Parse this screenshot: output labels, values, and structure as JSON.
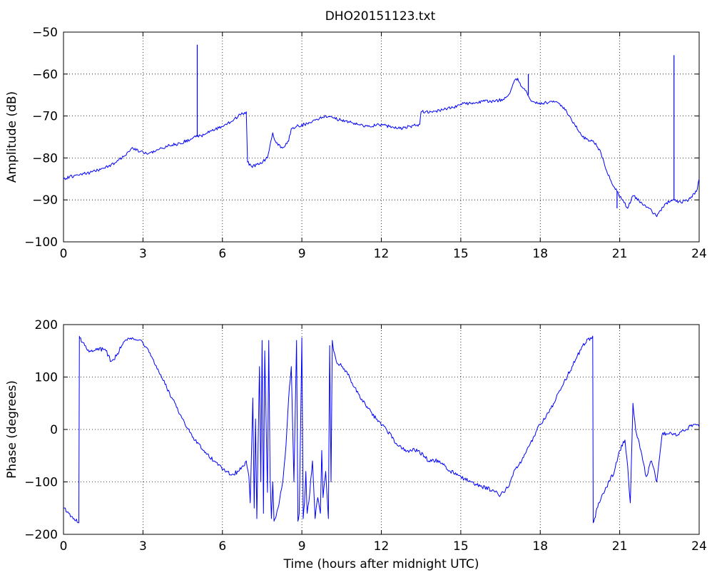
{
  "figure": {
    "title": "DHO20151123.txt"
  },
  "chart_data": [
    {
      "type": "line",
      "title": "DHO20151123.txt",
      "xlabel": "",
      "ylabel": "Amplitude (dB)",
      "xlim": [
        0,
        24
      ],
      "ylim": [
        -100,
        -50
      ],
      "xticks": [
        0,
        3,
        6,
        9,
        12,
        15,
        18,
        21,
        24
      ],
      "xtick_labels": [
        "0",
        "3",
        "6",
        "9",
        "12",
        "15",
        "18",
        "21",
        "24"
      ],
      "yticks": [
        -100,
        -90,
        -80,
        -70,
        -60,
        -50
      ],
      "ytick_labels": [
        "−100",
        "−90",
        "−80",
        "−70",
        "−60",
        "−50"
      ],
      "grid": true,
      "color": "#0000ff",
      "series": [
        {
          "x": [
            0,
            0.5,
            1.0,
            1.5,
            2.0,
            2.3,
            2.6,
            2.9,
            3.2,
            3.6,
            4.0,
            4.4,
            4.8,
            5.0,
            5.3,
            5.6,
            6.0,
            6.3,
            6.6,
            6.9,
            6.95,
            7.1,
            7.4,
            7.7,
            7.9,
            8.0,
            8.1,
            8.3,
            8.5,
            8.6,
            8.8,
            9.1,
            9.5,
            9.9,
            10.2,
            10.5,
            10.8,
            11.1,
            11.5,
            11.9,
            12.3,
            12.7,
            13.1,
            13.45,
            13.5,
            13.9,
            14.3,
            14.7,
            15.1,
            15.5,
            15.9,
            16.3,
            16.6,
            16.8,
            17.0,
            17.15,
            17.3,
            17.5,
            17.7,
            17.9,
            18.1,
            18.4,
            18.7,
            19.0,
            19.3,
            19.6,
            19.9,
            20.1,
            20.3,
            20.5,
            20.7,
            20.9,
            21.1,
            21.3,
            21.5,
            21.8,
            22.1,
            22.4,
            22.7,
            23.0,
            23.3,
            23.6,
            23.9,
            24.0
          ],
          "y": [
            -85,
            -84,
            -83.5,
            -82.5,
            -81,
            -79.5,
            -77.5,
            -78.5,
            -79,
            -78,
            -77,
            -76.5,
            -75.5,
            -75,
            -74.5,
            -73.5,
            -72.5,
            -71.5,
            -70,
            -69,
            -81,
            -82,
            -81.5,
            -80,
            -74,
            -76,
            -77,
            -77.5,
            -76,
            -73,
            -72.5,
            -72,
            -71,
            -70,
            -70.5,
            -71,
            -71.5,
            -72,
            -72.5,
            -72,
            -72.5,
            -73,
            -72.5,
            -72,
            -69,
            -69,
            -68.5,
            -68,
            -67,
            -67,
            -66.5,
            -66.5,
            -66,
            -65,
            -62,
            -61,
            -63,
            -64.5,
            -66.5,
            -67,
            -67,
            -66.5,
            -67,
            -69,
            -72,
            -75,
            -76,
            -76.5,
            -79,
            -83,
            -86,
            -88,
            -90,
            -92,
            -89,
            -90.5,
            -92,
            -94,
            -91,
            -90,
            -90.5,
            -90,
            -88,
            -85
          ]
        }
      ],
      "spikes": [
        {
          "x": 5.05,
          "y": -53
        },
        {
          "x": 17.55,
          "y": -60
        },
        {
          "x": 23.05,
          "y": -55.5
        },
        {
          "x": 20.9,
          "y": -92
        }
      ]
    },
    {
      "type": "line",
      "title": "",
      "xlabel": "Time (hours after midnight UTC)",
      "ylabel": "Phase (degrees)",
      "xlim": [
        0,
        24
      ],
      "ylim": [
        -200,
        200
      ],
      "xticks": [
        0,
        3,
        6,
        9,
        12,
        15,
        18,
        21,
        24
      ],
      "xtick_labels": [
        "0",
        "3",
        "6",
        "9",
        "12",
        "15",
        "18",
        "21",
        "24"
      ],
      "yticks": [
        -200,
        -100,
        0,
        100,
        200
      ],
      "ytick_labels": [
        "−200",
        "−100",
        "0",
        "100",
        "200"
      ],
      "grid": true,
      "color": "#0000ff",
      "series": [
        {
          "x": [
            0,
            0.2,
            0.4,
            0.58,
            0.6,
            0.62,
            0.8,
            1.0,
            1.3,
            1.6,
            1.8,
            2.0,
            2.2,
            2.4,
            2.6,
            2.8,
            3.0,
            3.3,
            3.7,
            4.1,
            4.5,
            4.9,
            5.3,
            5.7,
            6.1,
            6.4,
            6.6,
            6.8,
            6.9,
            7.0,
            7.05,
            7.1,
            7.15,
            7.2,
            7.25,
            7.3,
            7.4,
            7.45,
            7.5,
            7.55,
            7.6,
            7.7,
            7.75,
            7.8,
            7.85,
            7.9,
            7.95,
            8.0,
            8.1,
            8.2,
            8.3,
            8.4,
            8.5,
            8.6,
            8.7,
            8.8,
            8.85,
            8.9,
            8.95,
            9.0,
            9.05,
            9.1,
            9.15,
            9.2,
            9.3,
            9.4,
            9.5,
            9.6,
            9.7,
            9.75,
            9.8,
            9.9,
            10.0,
            10.05,
            10.1,
            10.15,
            10.2,
            10.3,
            10.5,
            10.8,
            11.0,
            11.2,
            11.5,
            11.8,
            12.2,
            12.6,
            13.0,
            13.4,
            13.8,
            14.2,
            14.6,
            15.0,
            15.4,
            15.8,
            16.2,
            16.5,
            16.8,
            17.0,
            17.3,
            17.6,
            18.0,
            18.4,
            18.8,
            19.2,
            19.6,
            19.9,
            19.98,
            20.0,
            20.05,
            20.2,
            20.5,
            20.8,
            21.0,
            21.2,
            21.3,
            21.4,
            21.5,
            21.6,
            21.8,
            22.0,
            22.2,
            22.4,
            22.6,
            22.9,
            23.2,
            23.5,
            23.8,
            24.0
          ],
          "y": [
            -150,
            -160,
            -170,
            -178,
            178,
            175,
            160,
            150,
            155,
            150,
            130,
            140,
            160,
            170,
            175,
            170,
            165,
            140,
            100,
            60,
            20,
            -15,
            -40,
            -60,
            -80,
            -85,
            -80,
            -70,
            -60,
            -90,
            -140,
            -40,
            60,
            -150,
            20,
            -170,
            120,
            -100,
            170,
            -160,
            150,
            -120,
            170,
            -90,
            -170,
            -100,
            -175,
            -170,
            -150,
            -120,
            -90,
            -30,
            60,
            120,
            -100,
            170,
            -175,
            -160,
            0,
            175,
            -170,
            -140,
            -80,
            -160,
            -120,
            -60,
            -170,
            -130,
            -160,
            -40,
            -130,
            -80,
            -170,
            160,
            -100,
            170,
            150,
            130,
            120,
            100,
            80,
            60,
            40,
            20,
            0,
            -30,
            -40,
            -40,
            -60,
            -60,
            -80,
            -90,
            -100,
            -110,
            -115,
            -125,
            -110,
            -80,
            -60,
            -30,
            10,
            40,
            80,
            120,
            160,
            175,
            178,
            -178,
            -170,
            -140,
            -110,
            -80,
            -40,
            -20,
            -70,
            -140,
            50,
            0,
            -40,
            -90,
            -60,
            -100,
            -10,
            -5,
            -10,
            0,
            10,
            5
          ]
        }
      ]
    }
  ]
}
